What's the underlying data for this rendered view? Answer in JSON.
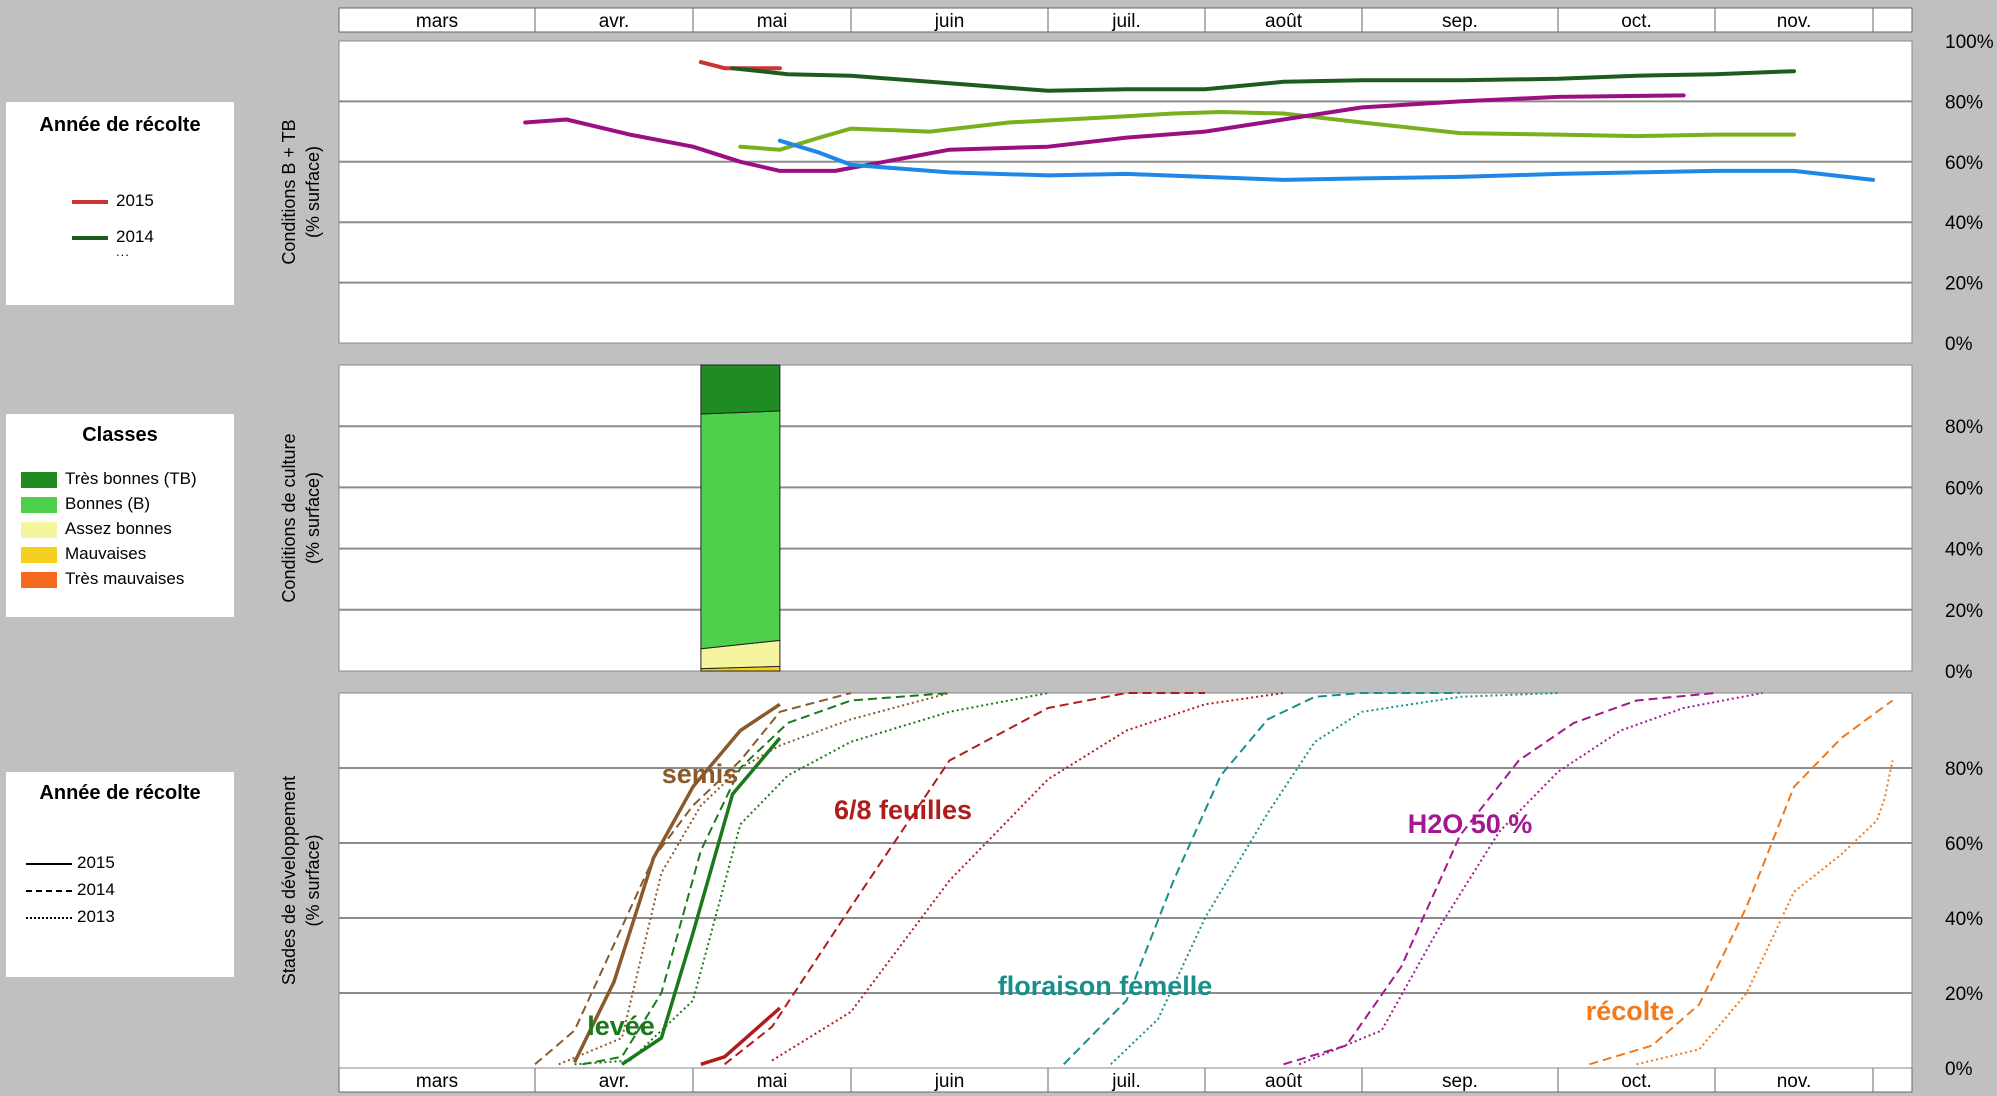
{
  "months": [
    "mars",
    "avr.",
    "mai",
    "juin",
    "juil.",
    "août",
    "sep.",
    "oct.",
    "nov."
  ],
  "legend_top": {
    "title": "Année de récolte",
    "items": [
      {
        "label": "2015",
        "color": "#cc3333"
      },
      {
        "label": "2014",
        "color": "#1e5c1e"
      }
    ],
    "ellipsis": "..."
  },
  "legend_classes": {
    "title": "Classes",
    "items": [
      {
        "label": "Très bonnes (TB)",
        "color": "#1f8c23"
      },
      {
        "label": "Bonnes (B)",
        "color": "#4dd14d"
      },
      {
        "label": "Assez bonnes",
        "color": "#f5f5a0"
      },
      {
        "label": "Mauvaises",
        "color": "#f5d020"
      },
      {
        "label": "Très mauvaises",
        "color": "#f56a20"
      }
    ]
  },
  "legend_bottom": {
    "title": "Année de récolte",
    "items": [
      {
        "label": "2015",
        "dash": "solid"
      },
      {
        "label": "2014",
        "dash": "dashed"
      },
      {
        "label": "2013",
        "dash": "dotted"
      }
    ]
  },
  "chart_data": [
    {
      "type": "line",
      "ylabel": "Conditions B + TB\n(% surface)",
      "x_unit": "month (1 = 1 mars)",
      "xlim": [
        0,
        9.5
      ],
      "ylim": [
        0,
        100
      ],
      "yticks": [
        "0%",
        "20%",
        "40%",
        "60%",
        "80%",
        "100%"
      ],
      "grid": true,
      "series": [
        {
          "name": "2015",
          "color": "#cc3333",
          "x": [
            2.05,
            2.2,
            2.55
          ],
          "y": [
            93,
            91,
            91
          ]
        },
        {
          "name": "2014",
          "color": "#1e5c1e",
          "x": [
            2.25,
            2.6,
            3.0,
            3.5,
            4.0,
            4.5,
            5.0,
            5.5,
            6.0,
            6.5,
            7.0,
            7.5,
            8.0,
            8.5
          ],
          "y": [
            91,
            89,
            88.5,
            86,
            83.5,
            84,
            84,
            86.5,
            87,
            87,
            87.5,
            88.5,
            89,
            90
          ]
        },
        {
          "name": "",
          "color": "#7ab01c",
          "x": [
            2.3,
            2.55,
            2.8,
            3.0,
            3.4,
            3.8,
            4.3,
            4.8,
            5.1,
            5.5,
            6.0,
            6.5,
            7.0,
            7.5,
            8.0,
            8.5
          ],
          "y": [
            65,
            64,
            68,
            71,
            70,
            73,
            74.5,
            76,
            76.5,
            76,
            73,
            69.5,
            69,
            68.5,
            69,
            69
          ]
        },
        {
          "name": "",
          "color": "#9a1080",
          "x": [
            0.95,
            1.2,
            1.6,
            2.0,
            2.3,
            2.55,
            2.9,
            3.5,
            4.0,
            4.5,
            5.0,
            5.5,
            6.0,
            6.5,
            7.0,
            7.8
          ],
          "y": [
            73,
            74,
            69,
            65,
            60,
            57,
            57,
            64,
            65,
            68,
            70,
            74,
            78,
            80,
            81.5,
            82
          ]
        },
        {
          "name": "",
          "color": "#1e88e8",
          "x": [
            2.55,
            2.8,
            3.0,
            3.5,
            4.0,
            4.5,
            5.0,
            5.5,
            6.0,
            6.5,
            7.0,
            7.5,
            8.0,
            8.5,
            9.0
          ],
          "y": [
            67,
            63,
            59,
            56.5,
            55.5,
            56,
            55,
            54,
            54.5,
            55,
            56,
            56.5,
            57,
            57,
            54
          ]
        }
      ]
    },
    {
      "type": "bar",
      "stacked": true,
      "ylabel": "Conditions de culture\n(% surface)",
      "x_range": [
        2.05,
        2.55
      ],
      "ylim": [
        0,
        100
      ],
      "yticks": [
        "0%",
        "20%",
        "40%",
        "60%",
        "80%"
      ],
      "grid": true,
      "segments": [
        {
          "class": "Très mauvaises",
          "color": "#f56a20",
          "values": [
            0,
            0
          ]
        },
        {
          "class": "Mauvaises",
          "color": "#f5d020",
          "values": [
            0.8,
            1.5
          ]
        },
        {
          "class": "Assez bonnes",
          "color": "#f5f5a0",
          "values": [
            6.5,
            8.5
          ]
        },
        {
          "class": "Bonnes (B)",
          "color": "#4dd14d",
          "values": [
            76.7,
            75.0
          ]
        },
        {
          "class": "Très bonnes (TB)",
          "color": "#1f8c23",
          "values": [
            16,
            15
          ]
        }
      ]
    },
    {
      "type": "line",
      "ylabel": "Stades de développement\n(% surface)",
      "ylim": [
        0,
        100
      ],
      "yticks": [
        "0%",
        "20%",
        "40%",
        "60%",
        "80%"
      ],
      "grid": true,
      "annotations": [
        {
          "text": "semis",
          "color": "#8b5a2b"
        },
        {
          "text": "levée",
          "color": "#1a7a1a"
        },
        {
          "text": "6/8 feuilles",
          "color": "#b01c1c"
        },
        {
          "text": "floraison femelle",
          "color": "#17908c"
        },
        {
          "text": "H2O 50 %",
          "color": "#a21890"
        },
        {
          "text": "récolte",
          "color": "#f07a1c"
        }
      ],
      "series": [
        {
          "name": "2015",
          "stage": "semis",
          "color": "#8b5a2b",
          "dash": "solid",
          "x": [
            1.25,
            1.5,
            1.75,
            2.0,
            2.3,
            2.55
          ],
          "y": [
            1.5,
            23,
            56,
            75,
            90,
            97
          ]
        },
        {
          "name": "2014",
          "stage": "semis",
          "color": "#8b5a2b",
          "dash": "dashed",
          "x": [
            1.0,
            1.25,
            1.5,
            1.75,
            2.0,
            2.3,
            2.55,
            3.0
          ],
          "y": [
            1,
            10,
            33,
            56,
            70,
            82,
            95,
            100
          ]
        },
        {
          "name": "2013",
          "stage": "semis",
          "color": "#8b5a2b",
          "dash": "dotted",
          "x": [
            1.15,
            1.55,
            1.8,
            2.05,
            2.3,
            2.55,
            3.0,
            3.5
          ],
          "y": [
            1,
            8,
            52,
            70,
            80,
            86,
            93,
            100
          ]
        },
        {
          "name": "2015",
          "stage": "levée",
          "color": "#1a7a1a",
          "dash": "solid",
          "x": [
            1.55,
            1.8,
            2.0,
            2.25,
            2.55
          ],
          "y": [
            1,
            8,
            36,
            73,
            88
          ]
        },
        {
          "name": "2014",
          "stage": "levée",
          "color": "#1a7a1a",
          "dash": "dashed",
          "x": [
            1.3,
            1.55,
            1.8,
            2.05,
            2.3,
            2.6,
            3.0,
            3.5
          ],
          "y": [
            1,
            3,
            20,
            58,
            80,
            92,
            98,
            100
          ]
        },
        {
          "name": "2013",
          "stage": "levée",
          "color": "#1a7a1a",
          "dash": "dotted",
          "x": [
            1.25,
            1.6,
            2.0,
            2.3,
            2.6,
            3.0,
            3.5,
            4.0
          ],
          "y": [
            1,
            2,
            18,
            65,
            78,
            87,
            95,
            100
          ]
        },
        {
          "name": "2015",
          "stage": "6/8 feuilles",
          "color": "#b01c1c",
          "dash": "solid",
          "x": [
            2.05,
            2.2,
            2.55
          ],
          "y": [
            1,
            3,
            16
          ]
        },
        {
          "name": "2014",
          "stage": "6/8 feuilles",
          "color": "#b01c1c",
          "dash": "dashed",
          "x": [
            2.2,
            2.5,
            3.0,
            3.5,
            4.0,
            4.5,
            5.0
          ],
          "y": [
            1,
            11,
            43,
            82,
            96,
            100,
            100
          ]
        },
        {
          "name": "2013",
          "stage": "6/8 feuilles",
          "color": "#b01c1c",
          "dash": "dotted",
          "x": [
            2.5,
            3.0,
            3.5,
            4.0,
            4.5,
            5.0,
            5.5
          ],
          "y": [
            2,
            15,
            50,
            77,
            90,
            97,
            100
          ]
        },
        {
          "name": "2014",
          "stage": "floraison femelle",
          "color": "#17908c",
          "dash": "dashed",
          "x": [
            4.1,
            4.5,
            4.8,
            5.1,
            5.4,
            5.7,
            6.0,
            6.5
          ],
          "y": [
            1,
            18,
            50,
            78,
            93,
            99,
            100,
            100
          ]
        },
        {
          "name": "2013",
          "stage": "floraison femelle",
          "color": "#17908c",
          "dash": "dotted",
          "x": [
            4.4,
            4.7,
            5.0,
            5.4,
            5.7,
            6.0,
            6.5,
            7.0
          ],
          "y": [
            1,
            13,
            40,
            68,
            87,
            95,
            99,
            100
          ]
        },
        {
          "name": "2014",
          "stage": "H2O 50 %",
          "color": "#a21890",
          "dash": "dashed",
          "x": [
            5.5,
            5.9,
            6.2,
            6.5,
            6.8,
            7.1,
            7.5,
            8.0
          ],
          "y": [
            1,
            6,
            27,
            62,
            82,
            92,
            98,
            100
          ]
        },
        {
          "name": "2013",
          "stage": "H2O 50 %",
          "color": "#a21890",
          "dash": "dotted",
          "x": [
            5.6,
            6.1,
            6.4,
            6.7,
            7.0,
            7.4,
            7.8,
            8.3
          ],
          "y": [
            1,
            10,
            38,
            63,
            79,
            90,
            96,
            100
          ]
        },
        {
          "name": "2014",
          "stage": "récolte",
          "color": "#f07a1c",
          "dash": "dashed",
          "x": [
            7.2,
            7.6,
            7.9,
            8.2,
            8.5,
            8.8,
            9.1,
            9.5
          ],
          "y": [
            1,
            6,
            17,
            43,
            75,
            88,
            95,
            98
          ]
        },
        {
          "name": "2013",
          "stage": "récolte",
          "color": "#f07a1c",
          "dash": "dotted",
          "x": [
            7.5,
            7.9,
            8.2,
            8.5,
            8.8,
            9.1,
            9.3,
            9.5
          ],
          "y": [
            1,
            5,
            20,
            47,
            57,
            66,
            72,
            82
          ]
        }
      ]
    }
  ]
}
